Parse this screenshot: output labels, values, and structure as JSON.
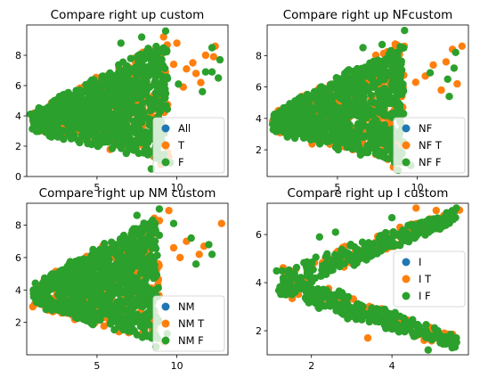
{
  "figure": {
    "background": "#ffffff"
  },
  "chart_data": [
    {
      "type": "scatter",
      "title": "Compare right up custom",
      "xlim": [
        0.6,
        13.2
      ],
      "ylim": [
        0.0,
        10.0
      ],
      "xticks": [
        5,
        10
      ],
      "yticks": [
        0,
        2,
        4,
        6,
        8
      ],
      "legend": {
        "placement": "lower-right",
        "entries": [
          "All",
          "T",
          "F"
        ]
      },
      "colors": [
        "#1f77b4",
        "#ff7f0e",
        "#2ca02c"
      ],
      "cloud": {
        "kind": "fan",
        "x0": 1.0,
        "y0": 3.6,
        "x1": 9.3,
        "ylow": 1.1,
        "yhigh": 9.0,
        "spread": 0.45,
        "base": 0.55
      },
      "series": [
        {
          "name": "All",
          "count": 0,
          "points": []
        },
        {
          "name": "T",
          "count": 320,
          "points": [
            [
              10.0,
              8.8
            ],
            [
              11.8,
              8.0
            ],
            [
              12.4,
              8.6
            ],
            [
              11.2,
              6.8
            ],
            [
              10.6,
              7.1
            ],
            [
              12.3,
              7.9
            ],
            [
              11.0,
              7.5
            ],
            [
              9.8,
              7.4
            ],
            [
              10.4,
              5.9
            ],
            [
              11.5,
              6.2
            ],
            [
              9.5,
              1.3
            ],
            [
              9.0,
              0.8
            ],
            [
              8.3,
              1.6
            ],
            [
              8.7,
              1.2
            ]
          ]
        },
        {
          "name": "F",
          "count": 900,
          "points": [
            [
              9.3,
              9.6
            ],
            [
              7.8,
              9.2
            ],
            [
              6.5,
              8.8
            ],
            [
              12.2,
              8.5
            ],
            [
              12.7,
              7.7
            ],
            [
              12.6,
              6.5
            ],
            [
              11.6,
              5.6
            ],
            [
              12.2,
              6.9
            ],
            [
              9.6,
              0.9
            ],
            [
              8.4,
              0.5
            ],
            [
              11.8,
              6.9
            ],
            [
              10.1,
              6.1
            ]
          ]
        }
      ]
    },
    {
      "type": "scatter",
      "title": "Compare right up NFcustom",
      "xlim": [
        0.6,
        13.2
      ],
      "ylim": [
        0.3,
        9.95
      ],
      "xticks": [
        5,
        10
      ],
      "yticks": [
        2,
        4,
        6,
        8
      ],
      "legend": {
        "placement": "lower-right",
        "entries": [
          "NF",
          "NF T",
          "NF F"
        ]
      },
      "colors": [
        "#1f77b4",
        "#ff7f0e",
        "#2ca02c"
      ],
      "cloud": {
        "kind": "fan",
        "x0": 1.0,
        "y0": 3.8,
        "x1": 9.1,
        "ylow": 1.1,
        "yhigh": 8.8,
        "spread": 0.45,
        "base": 0.55
      },
      "series": [
        {
          "name": "NF",
          "count": 0,
          "points": []
        },
        {
          "name": "NF T",
          "count": 320,
          "points": [
            [
              12.8,
              8.6
            ],
            [
              12.2,
              8.4
            ],
            [
              11.8,
              7.6
            ],
            [
              11.0,
              7.4
            ],
            [
              10.5,
              6.7
            ],
            [
              11.5,
              5.8
            ],
            [
              9.9,
              6.3
            ],
            [
              9.2,
              1.2
            ],
            [
              8.5,
              0.9
            ],
            [
              12.5,
              6.2
            ]
          ]
        },
        {
          "name": "NF F",
          "count": 900,
          "points": [
            [
              9.2,
              9.6
            ],
            [
              7.8,
              8.7
            ],
            [
              6.6,
              8.5
            ],
            [
              12.4,
              8.2
            ],
            [
              12.3,
              7.2
            ],
            [
              11.9,
              6.5
            ],
            [
              9.6,
              1.0
            ],
            [
              8.8,
              0.7
            ],
            [
              12.0,
              5.4
            ],
            [
              10.8,
              6.9
            ]
          ]
        }
      ]
    },
    {
      "type": "scatter",
      "title": "Compare right up NM custom",
      "xlim": [
        0.6,
        13.2
      ],
      "ylim": [
        0.0,
        9.35
      ],
      "xticks": [
        5,
        10
      ],
      "yticks": [
        2,
        4,
        6,
        8
      ],
      "legend": {
        "placement": "lower-right",
        "entries": [
          "NM",
          "NM T",
          "NM F"
        ]
      },
      "colors": [
        "#1f77b4",
        "#ff7f0e",
        "#2ca02c"
      ],
      "cloud": {
        "kind": "fan",
        "x0": 1.0,
        "y0": 3.6,
        "x1": 8.8,
        "ylow": 0.9,
        "yhigh": 8.6,
        "spread": 0.45,
        "base": 0.55
      },
      "series": [
        {
          "name": "NM",
          "count": 0,
          "points": []
        },
        {
          "name": "NM T",
          "count": 320,
          "points": [
            [
              9.5,
              8.9
            ],
            [
              12.8,
              8.1
            ],
            [
              11.7,
              6.7
            ],
            [
              10.6,
              7.0
            ],
            [
              10.2,
              6.0
            ],
            [
              11.4,
              6.2
            ],
            [
              9.8,
              6.6
            ],
            [
              8.6,
              1.7
            ],
            [
              9.2,
              0.8
            ]
          ]
        },
        {
          "name": "NM F",
          "count": 900,
          "points": [
            [
              8.9,
              9.0
            ],
            [
              7.5,
              8.6
            ],
            [
              9.8,
              8.1
            ],
            [
              12.0,
              6.8
            ],
            [
              12.2,
              6.2
            ],
            [
              10.9,
              7.2
            ],
            [
              9.4,
              1.3
            ],
            [
              8.7,
              0.5
            ],
            [
              11.2,
              5.6
            ]
          ]
        }
      ]
    },
    {
      "type": "scatter",
      "title": "Compare right up I custom",
      "xlim": [
        0.9,
        5.9
      ],
      "ylim": [
        1.0,
        7.3
      ],
      "xticks": [
        2,
        4
      ],
      "yticks": [
        2,
        4,
        6
      ],
      "legend": {
        "placement": "center-right",
        "entries": [
          "I",
          "I T",
          "I F"
        ]
      },
      "colors": [
        "#1f77b4",
        "#ff7f0e",
        "#2ca02c"
      ],
      "cloud": {
        "kind": "v",
        "x0": 1.2,
        "y0": 4.0,
        "x1": 5.6,
        "ylow": 1.5,
        "yhigh": 6.8,
        "spread": 0.55,
        "base": 0.7
      },
      "series": [
        {
          "name": "I",
          "count": 0,
          "points": []
        },
        {
          "name": "I T",
          "count": 160,
          "points": [
            [
              4.6,
              7.1
            ],
            [
              5.1,
              7.0
            ],
            [
              4.2,
              6.3
            ],
            [
              5.4,
              6.5
            ],
            [
              4.9,
              6.1
            ],
            [
              3.4,
              1.7
            ],
            [
              5.3,
              1.9
            ],
            [
              4.8,
              1.6
            ],
            [
              5.5,
              1.8
            ]
          ]
        },
        {
          "name": "I F",
          "count": 500,
          "points": [
            [
              5.6,
              7.1
            ],
            [
              2.2,
              5.9
            ],
            [
              2.6,
              6.1
            ],
            [
              4.0,
              6.7
            ],
            [
              5.0,
              6.6
            ],
            [
              5.6,
              1.7
            ],
            [
              4.9,
              1.2
            ],
            [
              2.9,
              2.5
            ],
            [
              5.2,
              1.5
            ]
          ]
        }
      ]
    }
  ]
}
